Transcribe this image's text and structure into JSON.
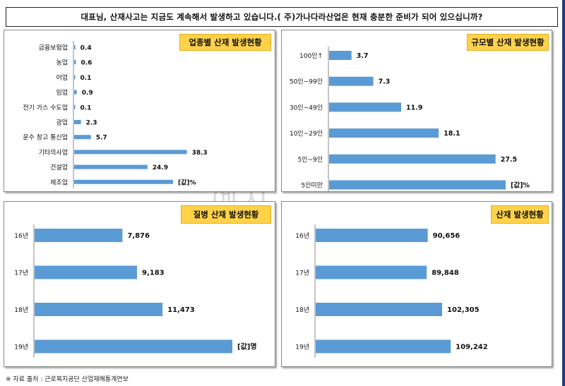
{
  "header": {
    "question": "대표님, 산재사고는 지금도 계속해서 발생하고 있습니다.( 주)가나다라산업은 현재 충분한 준비가 되어 있으십니까?"
  },
  "watermark": "예시",
  "footer": {
    "source": "※ 자료 출처 : 근로복지공단 산업재해통계연보"
  },
  "colors": {
    "bar": "#5b9bd5",
    "title_bg": "#ffd24a",
    "edge": "#1f3e7a"
  },
  "chart_data": [
    {
      "type": "bar",
      "orientation": "horizontal",
      "title": "업종별 산재 발생현황",
      "categories": [
        "금융보험업",
        "농업",
        "어업",
        "임업",
        "전기 가스 수도업",
        "광업",
        "운수 창고 통신업",
        "기타의사업",
        "건설업",
        "제조업"
      ],
      "values": [
        0.4,
        0.6,
        0.1,
        0.9,
        0.1,
        2.3,
        5.7,
        38.3,
        24.9,
        null
      ],
      "labels": [
        "0.4",
        "0.6",
        "0.1",
        "0.9",
        "0.1",
        "2.3",
        "5.7",
        "38.3",
        "24.9",
        "[값]%"
      ],
      "xlim": [
        0,
        60
      ]
    },
    {
      "type": "bar",
      "orientation": "horizontal",
      "title": "규모별 산재 발생현황",
      "categories": [
        "100인↑",
        "50인~99인",
        "30인~49인",
        "10인~29인",
        "5인~9인",
        "5인미만"
      ],
      "values": [
        3.7,
        7.3,
        11.9,
        18.1,
        27.5,
        null
      ],
      "labels": [
        "3.7",
        "7.3",
        "11.9",
        "18.1",
        "27.5",
        "[값]%"
      ],
      "xlim": [
        0,
        35
      ]
    },
    {
      "type": "bar",
      "orientation": "horizontal",
      "title": "질병 산재 발생현황",
      "categories": [
        "16년",
        "17년",
        "18년",
        "19년"
      ],
      "values": [
        7876,
        9183,
        11473,
        null
      ],
      "labels": [
        "7,876",
        "9,183",
        "11,473",
        "[값]명"
      ],
      "xlim": [
        0,
        19000
      ]
    },
    {
      "type": "bar",
      "orientation": "horizontal",
      "title": "산재 발생현황",
      "categories": [
        "16년",
        "17년",
        "18년",
        "19년"
      ],
      "values": [
        90656,
        89848,
        102305,
        109242
      ],
      "labels": [
        "90,656",
        "89,848",
        "102,305",
        "109,242"
      ],
      "xlim": [
        0,
        160000
      ]
    }
  ]
}
